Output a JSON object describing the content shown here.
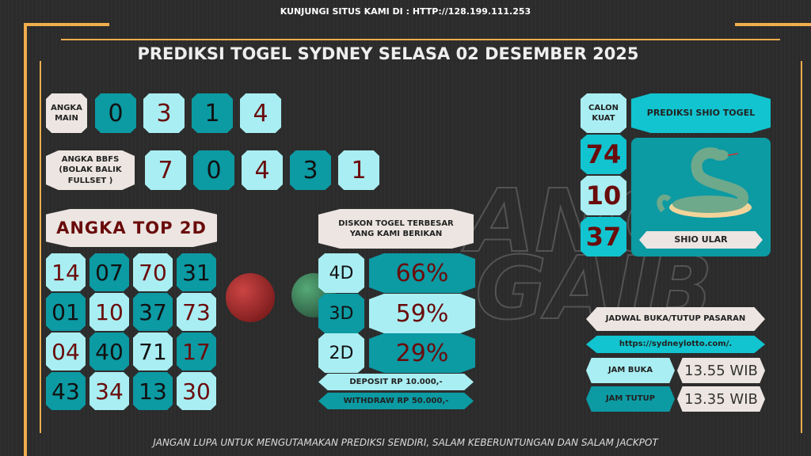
{
  "header": {
    "visit_text": "KUNJUNGI SITUS KAMI DI : HTTP://128.199.111.253",
    "title": "PREDIKSI TOGEL SYDNEY SELASA 02 DESEMBER 2025"
  },
  "colors": {
    "light": "#a9eef2",
    "teal": "#0c9aa3",
    "cyan": "#11c4cf",
    "beige": "#ece5e1",
    "number_red": "#6a0b0b",
    "frame_orange": "#f0ad4e",
    "background": "#2c2c2c"
  },
  "angka_main": {
    "label": "ANGKA MAIN",
    "digits": [
      "0",
      "3",
      "1",
      "4"
    ]
  },
  "bbfs": {
    "label": "ANGKA BBFS (BOLAK BALIK FULLSET )",
    "digits": [
      "7",
      "0",
      "4",
      "3",
      "1"
    ]
  },
  "top2d": {
    "label": "ANGKA TOP 2D",
    "numbers": [
      "14",
      "07",
      "70",
      "31",
      "01",
      "10",
      "37",
      "73",
      "04",
      "40",
      "71",
      "17",
      "43",
      "34",
      "13",
      "30"
    ]
  },
  "diskon": {
    "title": "DISKON TOGEL TERBESAR YANG KAMI BERIKAN",
    "rows": [
      {
        "type": "4D",
        "value": "66%"
      },
      {
        "type": "3D",
        "value": "59%"
      },
      {
        "type": "2D",
        "value": "29%"
      }
    ],
    "deposit": "DEPOSIT RP 10.000,-",
    "withdraw": "WITHDRAW RP 50.000,-"
  },
  "calon_kuat": {
    "label": "CALON KUAT",
    "numbers": [
      "74",
      "10",
      "37"
    ]
  },
  "shio": {
    "title": "PREDIKSI SHIO TOGEL",
    "name": "SHIO ULAR",
    "icon": "snake-icon"
  },
  "jadwal": {
    "title": "JADWAL BUKA/TUTUP PASARAN",
    "url": "https://sydneylotto.com/.",
    "buka_label": "JAM BUKA",
    "buka_time": "13.55 WIB",
    "tutup_label": "JAM TUTUP",
    "tutup_time": "13.35 WIB"
  },
  "footer": {
    "text": "JANGAN LUPA UNTUK MENGUTAMAKAN PREDIKSI SENDIRI, SALAM KEBERUNTUNGAN DAN SALAM JACKPOT"
  }
}
